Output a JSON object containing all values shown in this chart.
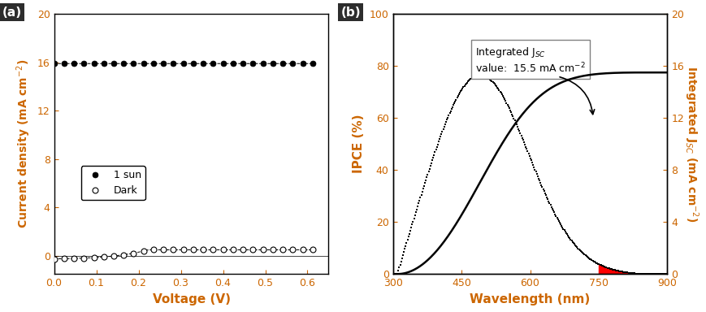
{
  "panel_a": {
    "label": "(a)",
    "xlabel": "Voltage (V)",
    "ylabel": "Current density (mA cm$^{-2}$)",
    "xlim": [
      0.0,
      0.65
    ],
    "ylim": [
      -1.5,
      20
    ],
    "xticks": [
      0.0,
      0.1,
      0.2,
      0.3,
      0.4,
      0.5,
      0.6
    ],
    "yticks": [
      0,
      4,
      8,
      12,
      16,
      20
    ],
    "legend_1sun": "1 sun",
    "legend_dark": "Dark"
  },
  "panel_b": {
    "label": "(b)",
    "xlabel": "Wavelength (nm)",
    "ylabel_left": "IPCE (%)",
    "ylabel_right": "Integrated J$_{SC}$ (mA cm$^{-2}$)",
    "xlim": [
      300,
      900
    ],
    "ylim_left": [
      0,
      100
    ],
    "ylim_right": [
      0,
      20
    ],
    "xticks": [
      300,
      450,
      600,
      750,
      900
    ],
    "yticks_left": [
      0,
      20,
      40,
      60,
      80,
      100
    ],
    "yticks_right": [
      0,
      4,
      8,
      12,
      16,
      20
    ],
    "red_fill_start": 750,
    "integrated_max": 15.5
  },
  "label_bg_color": "#2d2d2d",
  "label_text_color": "white",
  "axis_color": "#cc6600",
  "spine_color": "black"
}
